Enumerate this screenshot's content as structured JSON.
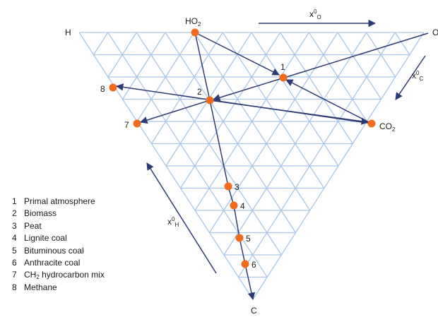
{
  "corners": {
    "top_left": "H",
    "top_right": "O",
    "bottom": "C"
  },
  "compounds": [
    {
      "base": "HO",
      "sub": "2"
    },
    {
      "base": "CO",
      "sub": "2"
    }
  ],
  "axis_labels": [
    {
      "base": "x",
      "sup": "0",
      "sub": "O"
    },
    {
      "base": "x",
      "sup": "0",
      "sub": "C"
    },
    {
      "base": "x",
      "sup": "0",
      "sub": "H"
    }
  ],
  "points": [
    {
      "id": 1,
      "label": "1"
    },
    {
      "id": 2,
      "label": "2"
    },
    {
      "id": 3,
      "label": "3"
    },
    {
      "id": 4,
      "label": "4"
    },
    {
      "id": 5,
      "label": "5"
    },
    {
      "id": 6,
      "label": "6"
    },
    {
      "id": 7,
      "label": "7"
    },
    {
      "id": 8,
      "label": "8"
    }
  ],
  "legend": [
    {
      "num": "1",
      "text": "Primal atmosphere"
    },
    {
      "num": "2",
      "text": "Biomass"
    },
    {
      "num": "3",
      "text": "Peat"
    },
    {
      "num": "4",
      "text": "Lignite coal"
    },
    {
      "num": "5",
      "text": "Bituminous coal"
    },
    {
      "num": "6",
      "text": "Anthracite coal"
    },
    {
      "num": "7",
      "pre": "CH",
      "sub": "2",
      "text": " hydrocarbon mix"
    },
    {
      "num": "8",
      "text": "Methane"
    }
  ],
  "colors": {
    "grid": "#a9c6e8",
    "arrows": "#2d3a73",
    "points": "#f26a1b"
  }
}
